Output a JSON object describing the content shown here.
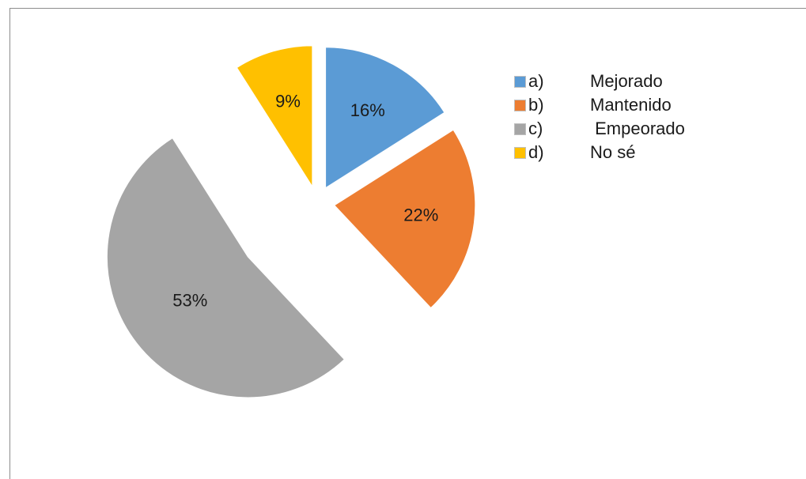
{
  "chart_data": {
    "type": "pie",
    "slices": [
      {
        "letter": "a)",
        "name": "Mejorado",
        "value": 16,
        "label": "16%",
        "color": "#5b9bd5"
      },
      {
        "letter": "b)",
        "name": "Mantenido",
        "value": 22,
        "label": "22%",
        "color": "#ed7d31"
      },
      {
        "letter": "c)",
        "name": " Empeorado",
        "value": 53,
        "label": "53%",
        "color": "#a5a5a5"
      },
      {
        "letter": "d)",
        "name": "No sé",
        "value": 9,
        "label": "9%",
        "color": "#ffc000"
      }
    ],
    "exploded": true,
    "legend": "right"
  }
}
